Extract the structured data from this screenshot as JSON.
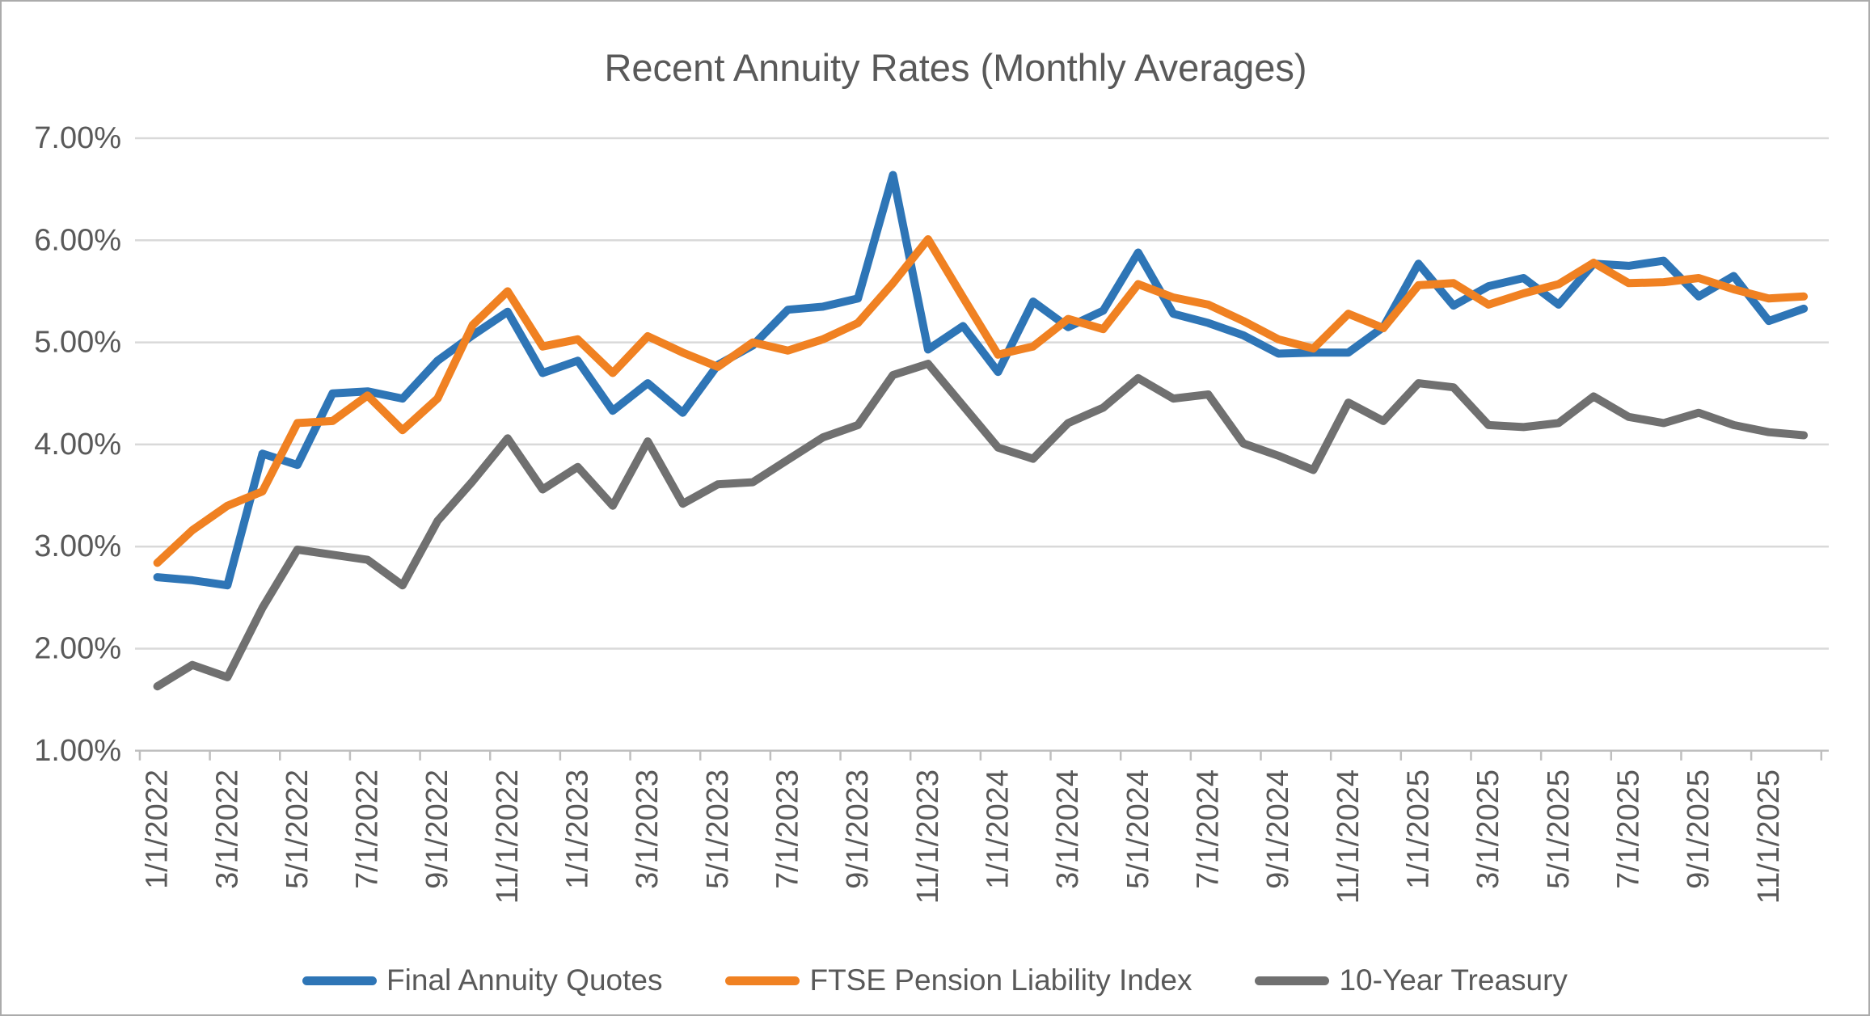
{
  "title": "Recent Annuity Rates (Monthly Averages)",
  "chart_data": {
    "type": "line",
    "title": "Recent Annuity Rates (Monthly Averages)",
    "ylabel": "",
    "xlabel": "",
    "ylim": [
      1.0,
      7.0
    ],
    "grid": true,
    "legend_position": "bottom",
    "y_tick_labels": [
      "7.00%",
      "6.00%",
      "5.00%",
      "4.00%",
      "3.00%",
      "2.00%",
      "1.00%"
    ],
    "y_tick_values": [
      7,
      6,
      5,
      4,
      3,
      2,
      1
    ],
    "x_tick_labels": [
      "1/1/2022",
      "3/1/2022",
      "5/1/2022",
      "7/1/2022",
      "9/1/2022",
      "11/1/2022",
      "1/1/2023",
      "3/1/2023",
      "5/1/2023",
      "7/1/2023",
      "9/1/2023",
      "11/1/2023",
      "1/1/2024",
      "3/1/2024",
      "5/1/2024",
      "7/1/2024",
      "9/1/2024",
      "11/1/2024",
      "1/1/2025",
      "3/1/2025",
      "5/1/2025",
      "7/1/2025",
      "9/1/2025",
      "11/1/2025"
    ],
    "categories": [
      "1/1/2022",
      "2/1/2022",
      "3/1/2022",
      "4/1/2022",
      "5/1/2022",
      "6/1/2022",
      "7/1/2022",
      "8/1/2022",
      "9/1/2022",
      "10/1/2022",
      "11/1/2022",
      "12/1/2022",
      "1/1/2023",
      "2/1/2023",
      "3/1/2023",
      "4/1/2023",
      "5/1/2023",
      "6/1/2023",
      "7/1/2023",
      "8/1/2023",
      "9/1/2023",
      "10/1/2023",
      "11/1/2023",
      "12/1/2023",
      "1/1/2024",
      "2/1/2024",
      "3/1/2024",
      "4/1/2024",
      "5/1/2024",
      "6/1/2024",
      "7/1/2024",
      "8/1/2024",
      "9/1/2024",
      "10/1/2024",
      "11/1/2024",
      "12/1/2024",
      "1/1/2025",
      "2/1/2025",
      "3/1/2025",
      "4/1/2025",
      "5/1/2025",
      "6/1/2025",
      "7/1/2025",
      "8/1/2025",
      "9/1/2025",
      "10/1/2025",
      "11/1/2025",
      "12/1/2025"
    ],
    "series": [
      {
        "name": "Final Annuity Quotes",
        "color": "#2e75b6",
        "values": [
          2.7,
          2.67,
          2.62,
          3.91,
          3.8,
          4.5,
          4.52,
          4.45,
          4.82,
          5.07,
          5.3,
          4.7,
          4.82,
          4.33,
          4.6,
          4.31,
          4.78,
          4.97,
          5.32,
          5.35,
          5.43,
          6.64,
          4.93,
          5.16,
          4.71,
          5.4,
          5.15,
          5.31,
          5.88,
          5.28,
          5.19,
          5.07,
          4.89,
          4.9,
          4.9,
          5.15,
          5.77,
          5.36,
          5.55,
          5.63,
          5.37,
          5.77,
          5.75,
          5.8,
          5.45,
          5.65,
          5.21,
          5.33
        ]
      },
      {
        "name": "FTSE Pension Liability Index",
        "color": "#f08122",
        "values": [
          2.84,
          3.16,
          3.4,
          3.54,
          4.21,
          4.23,
          4.48,
          4.14,
          4.45,
          5.17,
          5.5,
          4.96,
          5.03,
          4.7,
          5.06,
          4.9,
          4.76,
          5.0,
          4.92,
          5.03,
          5.19,
          5.58,
          6.01,
          5.44,
          4.88,
          4.96,
          5.23,
          5.13,
          5.57,
          5.44,
          5.37,
          5.21,
          5.03,
          4.94,
          5.28,
          5.14,
          5.56,
          5.58,
          5.37,
          5.48,
          5.57,
          5.78,
          5.58,
          5.59,
          5.63,
          5.52,
          5.43,
          5.45
        ]
      },
      {
        "name": "10-Year Treasury",
        "color": "#707070",
        "values": [
          1.63,
          1.84,
          1.72,
          2.4,
          2.97,
          2.92,
          2.87,
          2.62,
          3.25,
          3.64,
          4.06,
          3.56,
          3.78,
          3.4,
          4.03,
          3.42,
          3.61,
          3.63,
          3.85,
          4.07,
          4.19,
          4.68,
          4.79,
          4.38,
          3.97,
          3.86,
          4.21,
          4.36,
          4.65,
          4.45,
          4.49,
          4.01,
          3.89,
          3.75,
          4.41,
          4.23,
          4.6,
          4.56,
          4.19,
          4.17,
          4.21,
          4.47,
          4.27,
          4.21,
          4.31,
          4.19,
          4.12,
          4.09
        ]
      }
    ],
    "style": {
      "grid_color": "#d9d9d9",
      "axis_color": "#bfbfbf",
      "text_color": "#595959",
      "line_width": 10
    }
  }
}
